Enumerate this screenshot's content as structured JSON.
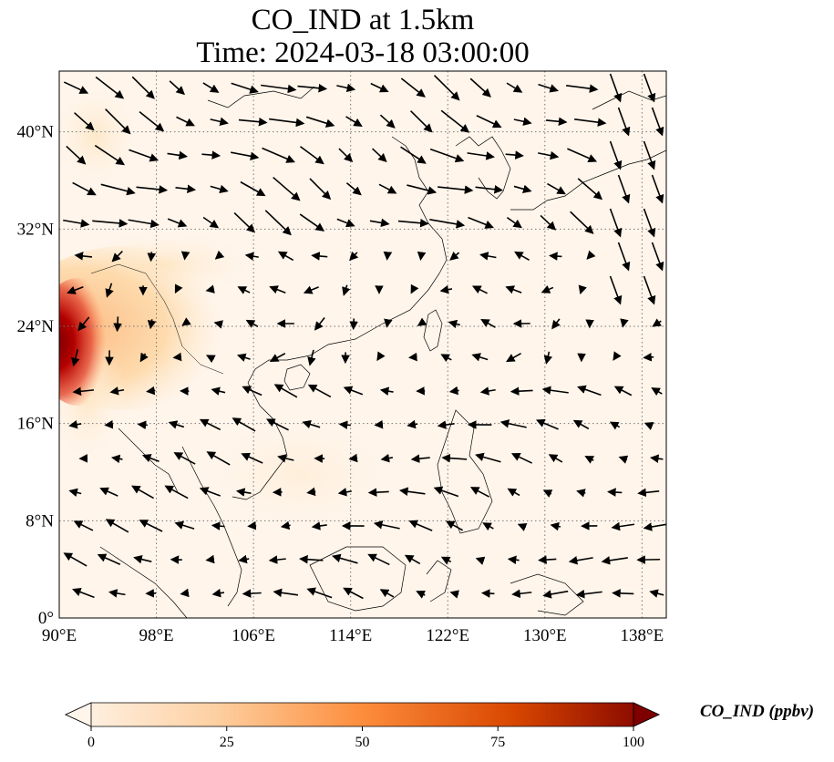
{
  "title_line1": "CO_IND at 1.5km",
  "title_line2": "Time: 2024-03-18 03:00:00",
  "map": {
    "lon_range": [
      90,
      140
    ],
    "lat_range": [
      0,
      45
    ],
    "lon_ticks": [
      {
        "value": 90,
        "label": "90°E"
      },
      {
        "value": 98,
        "label": "98°E"
      },
      {
        "value": 106,
        "label": "106°E"
      },
      {
        "value": 114,
        "label": "114°E"
      },
      {
        "value": 122,
        "label": "122°E"
      },
      {
        "value": 130,
        "label": "130°E"
      },
      {
        "value": 138,
        "label": "138°E"
      }
    ],
    "lat_ticks": [
      {
        "value": 0,
        "label": "0°"
      },
      {
        "value": 8,
        "label": "8°N"
      },
      {
        "value": 16,
        "label": "16°N"
      },
      {
        "value": 24,
        "label": "24°N"
      },
      {
        "value": 32,
        "label": "32°N"
      },
      {
        "value": 40,
        "label": "40°N"
      }
    ],
    "gridlines": "dotted",
    "colormap": [
      "#fff5eb",
      "#fdd0a2",
      "#fd8d3c",
      "#d94801",
      "#7f2704"
    ]
  },
  "colorbar": {
    "label": "CO_IND (ppbv)",
    "min": 0,
    "max": 100,
    "ticks": [
      {
        "value": 0,
        "label": "0"
      },
      {
        "value": 25,
        "label": "25"
      },
      {
        "value": 50,
        "label": "50"
      },
      {
        "value": 75,
        "label": "75"
      },
      {
        "value": 100,
        "label": "100"
      }
    ],
    "extend": "both"
  }
}
